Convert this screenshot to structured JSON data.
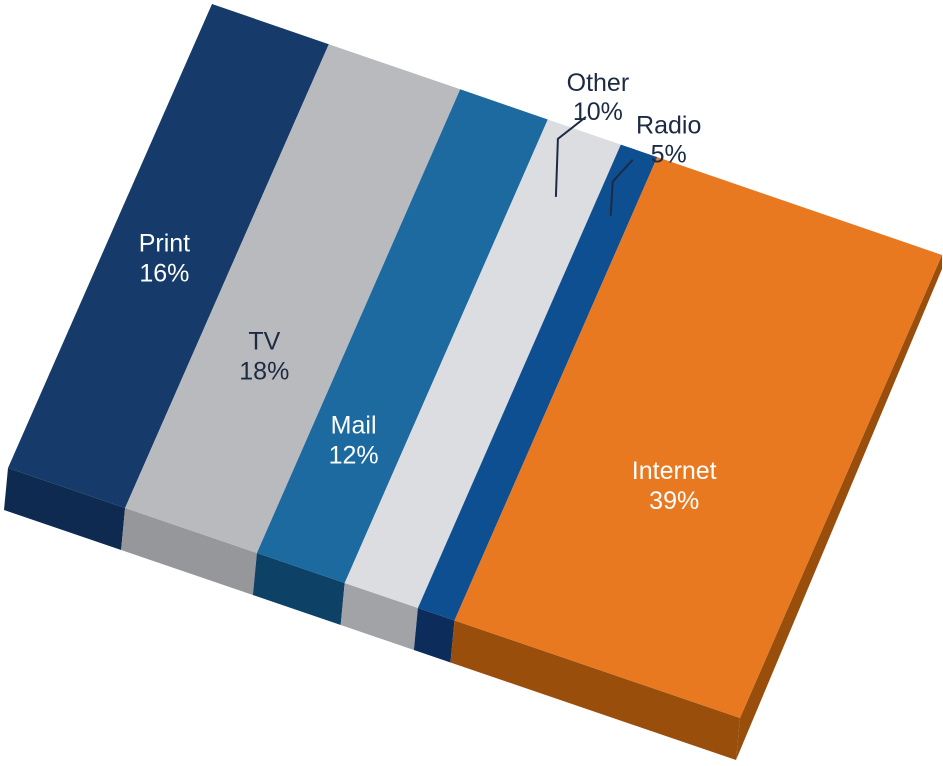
{
  "chart_data": {
    "type": "bar",
    "subtype": "3d-stacked-percentage-block",
    "title": "",
    "unit": "%",
    "series": [
      {
        "name": "Print",
        "value": 16,
        "label": "Print",
        "value_label": "16%",
        "color": "#163b6a",
        "side_color": "#0e2a50",
        "text_color": "#ffffff",
        "callout": false
      },
      {
        "name": "TV",
        "value": 18,
        "label": "TV",
        "value_label": "18%",
        "color": "#b9babd",
        "side_color": "#96979a",
        "text_color": "#1d2a44",
        "callout": false
      },
      {
        "name": "Mail",
        "value": 12,
        "label": "Mail",
        "value_label": "12%",
        "color": "#1c6aa0",
        "side_color": "#0d4266",
        "text_color": "#ffffff",
        "callout": false
      },
      {
        "name": "Other",
        "value": 10,
        "label": "Other",
        "value_label": "10%",
        "color": "#dcdde0",
        "side_color": "#a2a3a7",
        "text_color": "#1d2a44",
        "callout": true
      },
      {
        "name": "Radio",
        "value": 5,
        "label": "Radio",
        "value_label": "5%",
        "color": "#0e4f92",
        "side_color": "#0c2d5c",
        "text_color": "#1d2a44",
        "callout": true
      },
      {
        "name": "Internet",
        "value": 39,
        "label": "Internet",
        "value_label": "39%",
        "color": "#e87920",
        "side_color": "#9a4e0c",
        "text_color": "#ffffff",
        "callout": false
      }
    ]
  }
}
